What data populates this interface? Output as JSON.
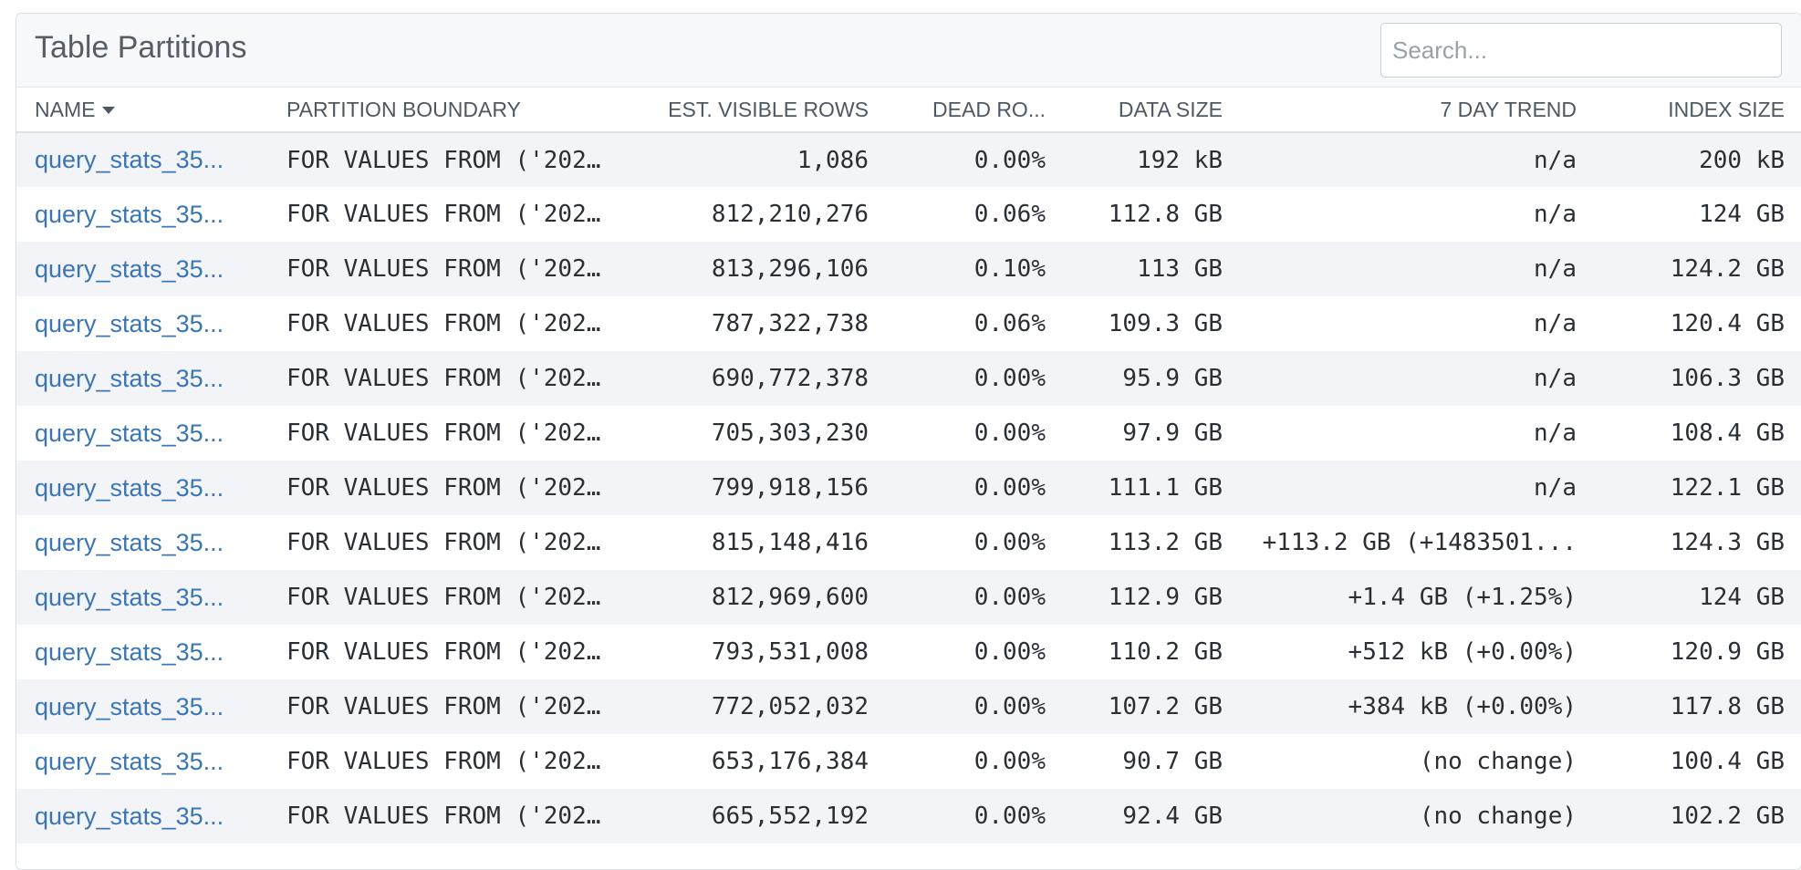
{
  "panel": {
    "title": "Table Partitions",
    "search_placeholder": "Search..."
  },
  "columns": {
    "name": "NAME",
    "boundary": "PARTITION BOUNDARY",
    "rows": "EST. VISIBLE ROWS",
    "dead": "DEAD RO...",
    "data_size": "DATA SIZE",
    "trend": "7 DAY TREND",
    "index_size": "INDEX SIZE"
  },
  "rows": [
    {
      "name": "query_stats_35...",
      "boundary": "FOR VALUES FROM ('202...",
      "rows": "1,086",
      "dead": "0.00%",
      "data_size": "192 kB",
      "trend": "n/a",
      "index_size": "200 kB"
    },
    {
      "name": "query_stats_35...",
      "boundary": "FOR VALUES FROM ('202...",
      "rows": "812,210,276",
      "dead": "0.06%",
      "data_size": "112.8 GB",
      "trend": "n/a",
      "index_size": "124 GB"
    },
    {
      "name": "query_stats_35...",
      "boundary": "FOR VALUES FROM ('202...",
      "rows": "813,296,106",
      "dead": "0.10%",
      "data_size": "113 GB",
      "trend": "n/a",
      "index_size": "124.2 GB"
    },
    {
      "name": "query_stats_35...",
      "boundary": "FOR VALUES FROM ('202...",
      "rows": "787,322,738",
      "dead": "0.06%",
      "data_size": "109.3 GB",
      "trend": "n/a",
      "index_size": "120.4 GB"
    },
    {
      "name": "query_stats_35...",
      "boundary": "FOR VALUES FROM ('202...",
      "rows": "690,772,378",
      "dead": "0.00%",
      "data_size": "95.9 GB",
      "trend": "n/a",
      "index_size": "106.3 GB"
    },
    {
      "name": "query_stats_35...",
      "boundary": "FOR VALUES FROM ('202...",
      "rows": "705,303,230",
      "dead": "0.00%",
      "data_size": "97.9 GB",
      "trend": "n/a",
      "index_size": "108.4 GB"
    },
    {
      "name": "query_stats_35...",
      "boundary": "FOR VALUES FROM ('202...",
      "rows": "799,918,156",
      "dead": "0.00%",
      "data_size": "111.1 GB",
      "trend": "n/a",
      "index_size": "122.1 GB"
    },
    {
      "name": "query_stats_35...",
      "boundary": "FOR VALUES FROM ('202...",
      "rows": "815,148,416",
      "dead": "0.00%",
      "data_size": "113.2 GB",
      "trend": "+113.2 GB (+1483501...",
      "index_size": "124.3 GB"
    },
    {
      "name": "query_stats_35...",
      "boundary": "FOR VALUES FROM ('202...",
      "rows": "812,969,600",
      "dead": "0.00%",
      "data_size": "112.9 GB",
      "trend": "+1.4 GB (+1.25%)",
      "index_size": "124 GB"
    },
    {
      "name": "query_stats_35...",
      "boundary": "FOR VALUES FROM ('202...",
      "rows": "793,531,008",
      "dead": "0.00%",
      "data_size": "110.2 GB",
      "trend": "+512 kB (+0.00%)",
      "index_size": "120.9 GB"
    },
    {
      "name": "query_stats_35...",
      "boundary": "FOR VALUES FROM ('202...",
      "rows": "772,052,032",
      "dead": "0.00%",
      "data_size": "107.2 GB",
      "trend": "+384 kB (+0.00%)",
      "index_size": "117.8 GB"
    },
    {
      "name": "query_stats_35...",
      "boundary": "FOR VALUES FROM ('202...",
      "rows": "653,176,384",
      "dead": "0.00%",
      "data_size": "90.7 GB",
      "trend": "(no change)",
      "index_size": "100.4 GB"
    },
    {
      "name": "query_stats_35...",
      "boundary": "FOR VALUES FROM ('202...",
      "rows": "665,552,192",
      "dead": "0.00%",
      "data_size": "92.4 GB",
      "trend": "(no change)",
      "index_size": "102.2 GB"
    }
  ]
}
